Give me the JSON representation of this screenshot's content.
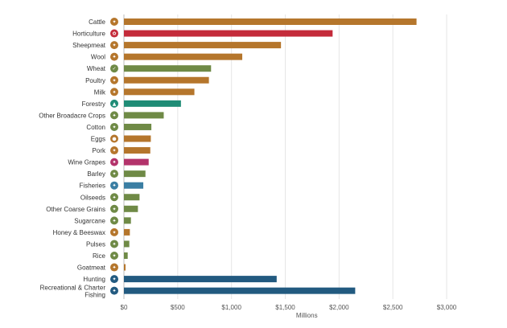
{
  "chart_data": {
    "type": "bar",
    "orientation": "horizontal",
    "title": "",
    "xlabel": "Millions",
    "ylabel": "",
    "xlim": [
      0,
      3000
    ],
    "xticks": [
      0,
      500,
      1000,
      1500,
      2000,
      2500,
      3000
    ],
    "xtick_labels": [
      "$0",
      "$500",
      "$1,000",
      "$1,500",
      "$2,000",
      "$2,500",
      "$3,000"
    ],
    "grid": "vertical",
    "legend": "none",
    "categories": [
      {
        "label": "Cattle",
        "value": 2720,
        "color": "#b5762c",
        "icon": "cattle-icon",
        "glyph": "✦"
      },
      {
        "label": "Horticulture",
        "value": 1940,
        "color": "#c42b3a",
        "icon": "horticulture-icon",
        "glyph": "✿"
      },
      {
        "label": "Sheepmeat",
        "value": 1460,
        "color": "#b5762c",
        "icon": "sheep-icon",
        "glyph": "✦"
      },
      {
        "label": "Wool",
        "value": 1100,
        "color": "#b5762c",
        "icon": "wool-icon",
        "glyph": "✦"
      },
      {
        "label": "Wheat",
        "value": 810,
        "color": "#6f8a46",
        "icon": "wheat-icon",
        "glyph": "✓"
      },
      {
        "label": "Poultry",
        "value": 790,
        "color": "#b5762c",
        "icon": "poultry-icon",
        "glyph": "✦"
      },
      {
        "label": "Milk",
        "value": 655,
        "color": "#b5762c",
        "icon": "milk-icon",
        "glyph": "✦"
      },
      {
        "label": "Forestry",
        "value": 530,
        "color": "#1f8c76",
        "icon": "forestry-icon",
        "glyph": "▲"
      },
      {
        "label": "Other Broadacre Crops",
        "value": 370,
        "color": "#6f8a46",
        "icon": "broadacre-icon",
        "glyph": "✦"
      },
      {
        "label": "Cotton",
        "value": 255,
        "color": "#6f8a46",
        "icon": "cotton-icon",
        "glyph": "✦"
      },
      {
        "label": "Eggs",
        "value": 250,
        "color": "#b5762c",
        "icon": "eggs-icon",
        "glyph": "●"
      },
      {
        "label": "Pork",
        "value": 245,
        "color": "#b5762c",
        "icon": "pork-icon",
        "glyph": "✦"
      },
      {
        "label": "Wine Grapes",
        "value": 230,
        "color": "#b3336b",
        "icon": "grapes-icon",
        "glyph": "✦"
      },
      {
        "label": "Barley",
        "value": 200,
        "color": "#6f8a46",
        "icon": "barley-icon",
        "glyph": "✦"
      },
      {
        "label": "Fisheries",
        "value": 180,
        "color": "#3a7ea3",
        "icon": "fish-icon",
        "glyph": "✦"
      },
      {
        "label": "Oilseeds",
        "value": 145,
        "color": "#6f8a46",
        "icon": "oilseeds-icon",
        "glyph": "✦"
      },
      {
        "label": "Other Coarse Grains",
        "value": 130,
        "color": "#6f8a46",
        "icon": "grains-icon",
        "glyph": "✦"
      },
      {
        "label": "Sugarcane",
        "value": 65,
        "color": "#6f8a46",
        "icon": "sugarcane-icon",
        "glyph": "✦"
      },
      {
        "label": "Honey & Beeswax",
        "value": 55,
        "color": "#b5762c",
        "icon": "honey-icon",
        "glyph": "✦"
      },
      {
        "label": "Pulses",
        "value": 50,
        "color": "#6f8a46",
        "icon": "pulses-icon",
        "glyph": "✦"
      },
      {
        "label": "Rice",
        "value": 35,
        "color": "#6f8a46",
        "icon": "rice-icon",
        "glyph": "✦"
      },
      {
        "label": "Goatmeat",
        "value": 15,
        "color": "#b5762c",
        "icon": "goat-icon",
        "glyph": "✦"
      },
      {
        "label": "Hunting",
        "value": 1420,
        "color": "#225a80",
        "icon": "hunting-icon",
        "glyph": "✦"
      },
      {
        "label": "Recreational & Charter Fishing",
        "value": 2150,
        "color": "#225a80",
        "icon": "recreational-fishing-icon",
        "glyph": "✦"
      }
    ]
  }
}
